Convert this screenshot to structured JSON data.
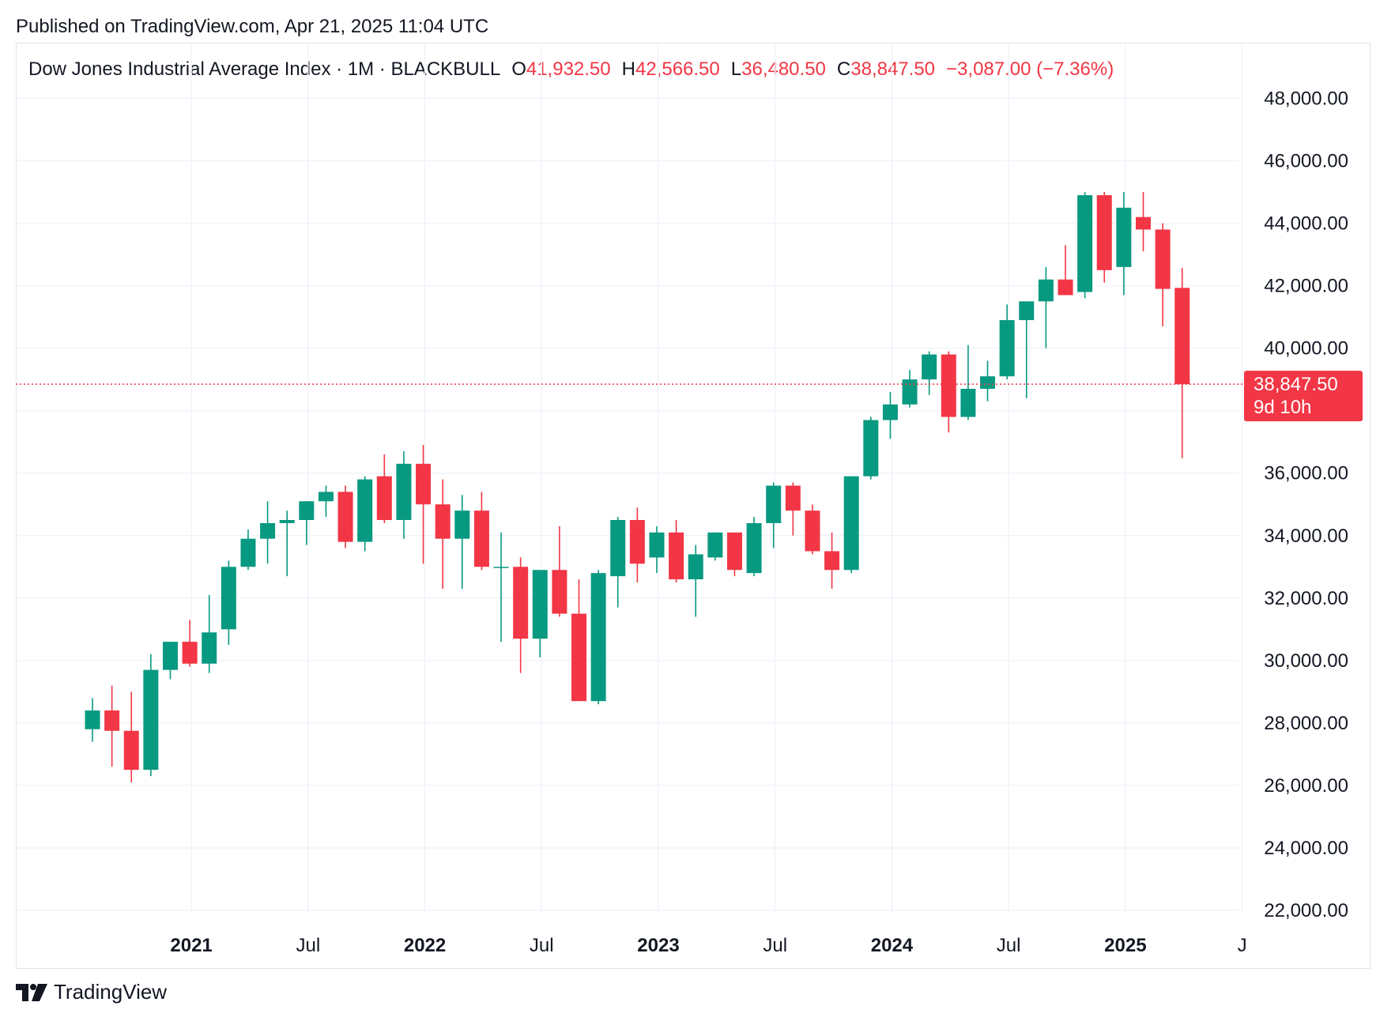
{
  "header": {
    "published": "Published on TradingView.com, Apr 21, 2025 11:04 UTC"
  },
  "legend": {
    "symbol": "Dow Jones Industrial Average Index · 1M · BLACKBULL",
    "o_label": "O",
    "o_value": "41,932.50",
    "h_label": "H",
    "h_value": "42,566.50",
    "l_label": "L",
    "l_value": "36,480.50",
    "c_label": "C",
    "c_value": "38,847.50",
    "change": "−3,087.00 (−7.36%)"
  },
  "price_tag": {
    "price": "38,847.50",
    "countdown": "9d 10h"
  },
  "footer": {
    "brand": "TradingView"
  },
  "colors": {
    "up": "#089981",
    "down": "#f23645",
    "grid": "#f0f3fa",
    "axis_text": "#131722"
  },
  "chart_data": {
    "type": "candlestick",
    "interval": "1M",
    "ylim": [
      21000,
      49000
    ],
    "y_ticks": [
      22000,
      24000,
      26000,
      28000,
      30000,
      32000,
      34000,
      36000,
      38000,
      40000,
      42000,
      44000,
      46000,
      48000
    ],
    "y_tick_labels": [
      "22,000.00",
      "24,000.00",
      "26,000.00",
      "28,000.00",
      "30,000.00",
      "32,000.00",
      "34,000.00",
      "36,000.00",
      "38,000.00",
      "40,000.00",
      "42,000.00",
      "44,000.00",
      "46,000.00",
      "48,000.00"
    ],
    "x_ticks": [
      {
        "label": "2021",
        "index": 5,
        "bold": true
      },
      {
        "label": "Jul",
        "index": 11,
        "bold": false
      },
      {
        "label": "2022",
        "index": 17,
        "bold": true
      },
      {
        "label": "Jul",
        "index": 23,
        "bold": false
      },
      {
        "label": "2023",
        "index": 29,
        "bold": true
      },
      {
        "label": "Jul",
        "index": 35,
        "bold": false
      },
      {
        "label": "2024",
        "index": 41,
        "bold": true
      },
      {
        "label": "Jul",
        "index": 47,
        "bold": false
      },
      {
        "label": "2025",
        "index": 53,
        "bold": true
      },
      {
        "label": "J",
        "index": 59,
        "bold": false
      }
    ],
    "last_price": 38847.5,
    "candles": [
      {
        "date": "2020-07",
        "o": 27800,
        "h": 28800,
        "l": 27400,
        "c": 28400
      },
      {
        "date": "2020-08",
        "o": 28400,
        "h": 29200,
        "l": 26600,
        "c": 27750
      },
      {
        "date": "2020-09",
        "o": 27750,
        "h": 29000,
        "l": 26100,
        "c": 26500
      },
      {
        "date": "2020-10",
        "o": 26500,
        "h": 30200,
        "l": 26300,
        "c": 29700
      },
      {
        "date": "2020-11",
        "o": 29700,
        "h": 30600,
        "l": 29400,
        "c": 30600
      },
      {
        "date": "2020-12",
        "o": 30600,
        "h": 31300,
        "l": 29800,
        "c": 29900
      },
      {
        "date": "2021-01",
        "o": 29900,
        "h": 32100,
        "l": 29600,
        "c": 30900
      },
      {
        "date": "2021-02",
        "o": 31000,
        "h": 33200,
        "l": 30500,
        "c": 33000
      },
      {
        "date": "2021-03",
        "o": 33000,
        "h": 34200,
        "l": 32900,
        "c": 33900
      },
      {
        "date": "2021-04",
        "o": 33900,
        "h": 35100,
        "l": 33100,
        "c": 34400
      },
      {
        "date": "2021-05",
        "o": 34400,
        "h": 34800,
        "l": 32700,
        "c": 34500
      },
      {
        "date": "2021-06",
        "o": 34500,
        "h": 35100,
        "l": 33700,
        "c": 35100
      },
      {
        "date": "2021-07",
        "o": 35100,
        "h": 35600,
        "l": 34600,
        "c": 35400
      },
      {
        "date": "2021-08",
        "o": 35400,
        "h": 35600,
        "l": 33600,
        "c": 33800
      },
      {
        "date": "2021-09",
        "o": 33800,
        "h": 35900,
        "l": 33500,
        "c": 35800
      },
      {
        "date": "2021-10",
        "o": 35900,
        "h": 36600,
        "l": 34400,
        "c": 34500
      },
      {
        "date": "2021-11",
        "o": 34500,
        "h": 36700,
        "l": 33900,
        "c": 36300
      },
      {
        "date": "2021-12",
        "o": 36300,
        "h": 36900,
        "l": 33100,
        "c": 35000
      },
      {
        "date": "2022-01",
        "o": 35000,
        "h": 35800,
        "l": 32300,
        "c": 33900
      },
      {
        "date": "2022-02",
        "o": 33900,
        "h": 35300,
        "l": 32300,
        "c": 34800
      },
      {
        "date": "2022-03",
        "o": 34800,
        "h": 35400,
        "l": 32900,
        "c": 33000
      },
      {
        "date": "2022-04",
        "o": 33000,
        "h": 34100,
        "l": 30600,
        "c": 33000
      },
      {
        "date": "2022-05",
        "o": 33000,
        "h": 33300,
        "l": 29600,
        "c": 30700
      },
      {
        "date": "2022-06",
        "o": 30700,
        "h": 32900,
        "l": 30100,
        "c": 32900
      },
      {
        "date": "2022-07",
        "o": 32900,
        "h": 34300,
        "l": 31400,
        "c": 31500
      },
      {
        "date": "2022-08",
        "o": 31500,
        "h": 32600,
        "l": 28700,
        "c": 28700
      },
      {
        "date": "2022-09",
        "o": 28700,
        "h": 32900,
        "l": 28600,
        "c": 32800
      },
      {
        "date": "2022-10",
        "o": 32700,
        "h": 34600,
        "l": 31700,
        "c": 34500
      },
      {
        "date": "2022-11",
        "o": 34500,
        "h": 34900,
        "l": 32500,
        "c": 33100
      },
      {
        "date": "2022-12",
        "o": 33300,
        "h": 34300,
        "l": 32800,
        "c": 34100
      },
      {
        "date": "2023-01",
        "o": 34100,
        "h": 34500,
        "l": 32500,
        "c": 32600
      },
      {
        "date": "2023-02",
        "o": 32600,
        "h": 33700,
        "l": 31400,
        "c": 33400
      },
      {
        "date": "2023-03",
        "o": 33300,
        "h": 34100,
        "l": 33200,
        "c": 34100
      },
      {
        "date": "2023-04",
        "o": 34100,
        "h": 34100,
        "l": 32700,
        "c": 32900
      },
      {
        "date": "2023-05",
        "o": 32800,
        "h": 34600,
        "l": 32700,
        "c": 34400
      },
      {
        "date": "2023-06",
        "o": 34400,
        "h": 35700,
        "l": 33600,
        "c": 35600
      },
      {
        "date": "2023-07",
        "o": 35600,
        "h": 35700,
        "l": 34000,
        "c": 34800
      },
      {
        "date": "2023-08",
        "o": 34800,
        "h": 35000,
        "l": 33400,
        "c": 33500
      },
      {
        "date": "2023-09",
        "o": 33500,
        "h": 34100,
        "l": 32300,
        "c": 32900
      },
      {
        "date": "2023-10",
        "o": 32900,
        "h": 35900,
        "l": 32800,
        "c": 35900
      },
      {
        "date": "2023-11",
        "o": 35900,
        "h": 37800,
        "l": 35800,
        "c": 37700
      },
      {
        "date": "2023-12",
        "o": 37700,
        "h": 38600,
        "l": 37100,
        "c": 38200
      },
      {
        "date": "2024-01",
        "o": 38200,
        "h": 39300,
        "l": 38100,
        "c": 39000
      },
      {
        "date": "2024-02",
        "o": 39000,
        "h": 39900,
        "l": 38500,
        "c": 39800
      },
      {
        "date": "2024-03",
        "o": 39800,
        "h": 39900,
        "l": 37300,
        "c": 37800
      },
      {
        "date": "2024-04",
        "o": 37800,
        "h": 40100,
        "l": 37700,
        "c": 38700
      },
      {
        "date": "2024-05",
        "o": 38700,
        "h": 39600,
        "l": 38300,
        "c": 39100
      },
      {
        "date": "2024-06",
        "o": 39100,
        "h": 41400,
        "l": 39000,
        "c": 40900
      },
      {
        "date": "2024-07",
        "o": 40900,
        "h": 41500,
        "l": 38400,
        "c": 41500
      },
      {
        "date": "2024-08",
        "o": 41500,
        "h": 42600,
        "l": 40000,
        "c": 42200
      },
      {
        "date": "2024-09",
        "o": 42200,
        "h": 43300,
        "l": 41700,
        "c": 41700
      },
      {
        "date": "2024-10",
        "o": 41800,
        "h": 45000,
        "l": 41600,
        "c": 44900
      },
      {
        "date": "2024-11",
        "o": 44900,
        "h": 45000,
        "l": 42100,
        "c": 42500
      },
      {
        "date": "2024-12",
        "o": 42600,
        "h": 45000,
        "l": 41700,
        "c": 44500
      },
      {
        "date": "2025-01",
        "o": 44200,
        "h": 45000,
        "l": 43100,
        "c": 43800
      },
      {
        "date": "2025-02",
        "o": 43800,
        "h": 44000,
        "l": 40700,
        "c": 41900
      },
      {
        "date": "2025-03",
        "o": 41932.5,
        "h": 42566.5,
        "l": 36480.5,
        "c": 38847.5
      }
    ]
  }
}
